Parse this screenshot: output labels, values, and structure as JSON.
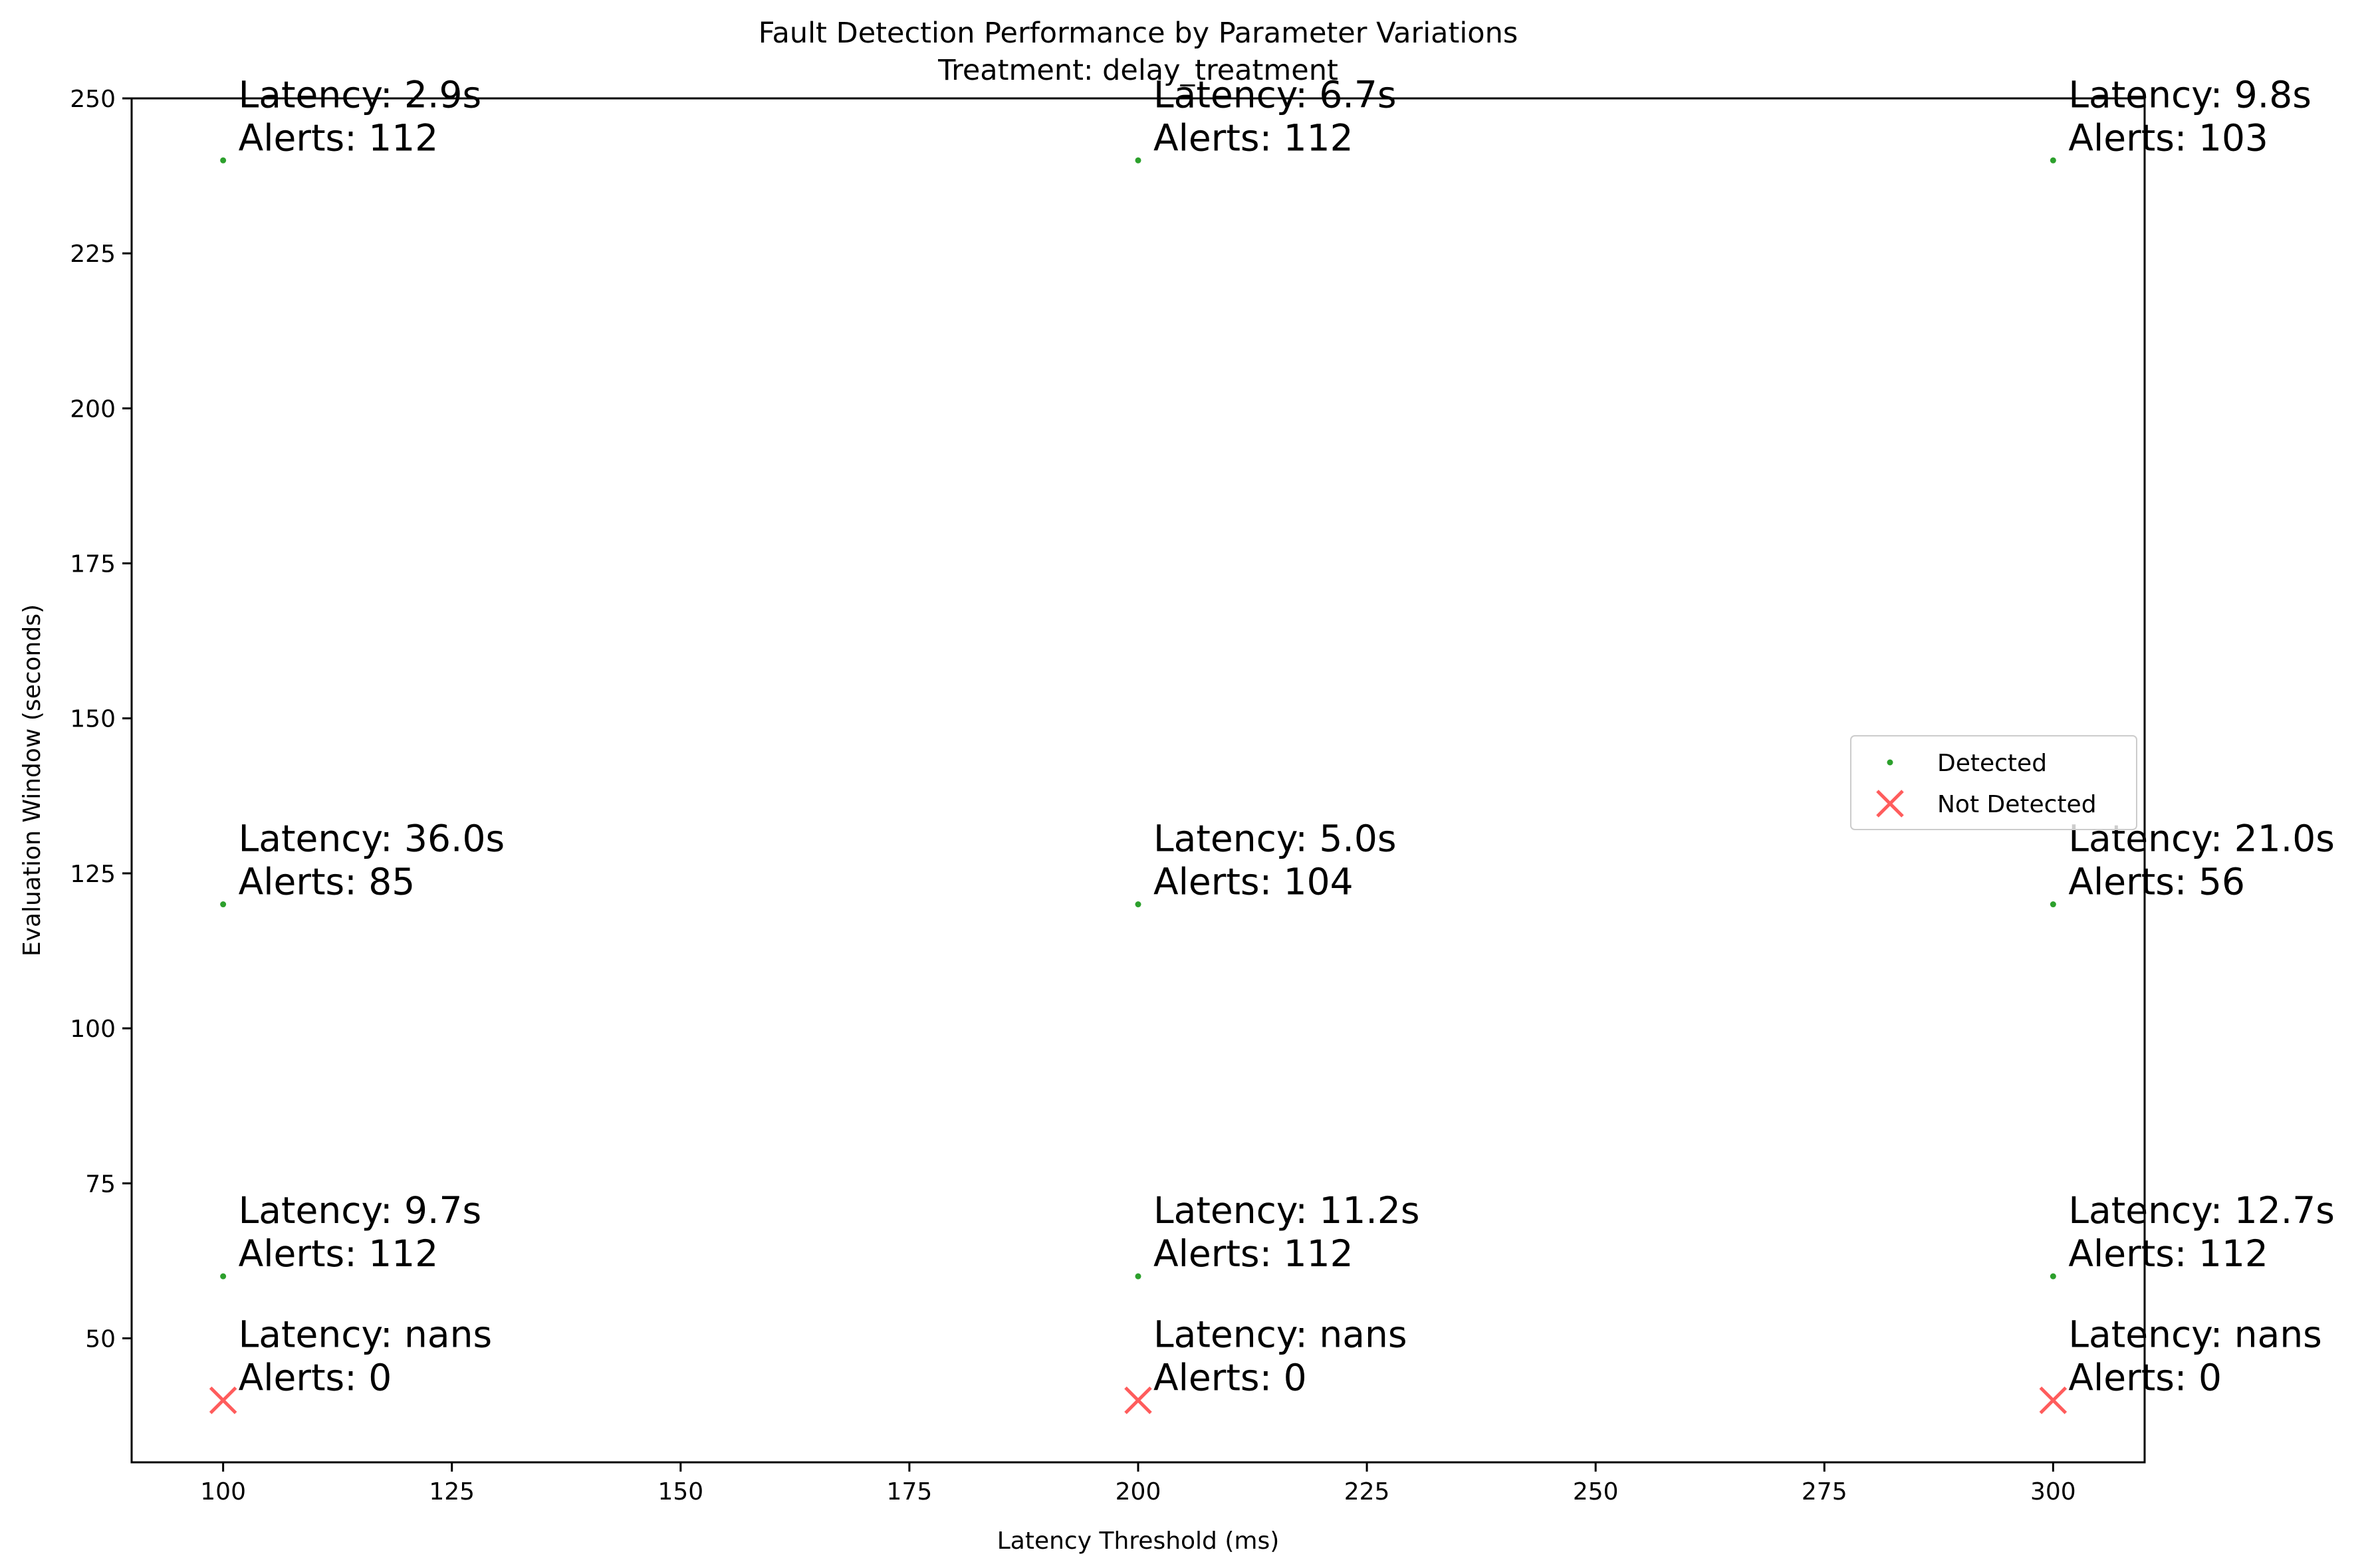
{
  "chart_data": {
    "type": "scatter",
    "title": "Fault Detection Performance by Parameter Variations",
    "subtitle": "Treatment: delay_treatment",
    "xlabel": "Latency Threshold (ms)",
    "ylabel": "Evaluation Window (seconds)",
    "xlim": [
      90,
      310
    ],
    "ylim": [
      30,
      250
    ],
    "xticks": [
      100,
      125,
      150,
      175,
      200,
      225,
      250,
      275,
      300
    ],
    "yticks": [
      50,
      75,
      100,
      125,
      150,
      175,
      200,
      225,
      250
    ],
    "grid": false,
    "legend_position": "center-right",
    "colors": {
      "detected": "#2ca02c",
      "not_detected": "#ff5c5c"
    },
    "series": [
      {
        "name": "Detected",
        "marker": "dot",
        "points": [
          {
            "x": 100,
            "y": 240,
            "latency_label": "Latency: 2.9s",
            "alerts_label": "Alerts: 112"
          },
          {
            "x": 200,
            "y": 240,
            "latency_label": "Latency: 6.7s",
            "alerts_label": "Alerts: 112"
          },
          {
            "x": 300,
            "y": 240,
            "latency_label": "Latency: 9.8s",
            "alerts_label": "Alerts: 103"
          },
          {
            "x": 100,
            "y": 120,
            "latency_label": "Latency: 36.0s",
            "alerts_label": "Alerts: 85"
          },
          {
            "x": 200,
            "y": 120,
            "latency_label": "Latency: 5.0s",
            "alerts_label": "Alerts: 104"
          },
          {
            "x": 300,
            "y": 120,
            "latency_label": "Latency: 21.0s",
            "alerts_label": "Alerts: 56"
          },
          {
            "x": 100,
            "y": 60,
            "latency_label": "Latency: 9.7s",
            "alerts_label": "Alerts: 112"
          },
          {
            "x": 200,
            "y": 60,
            "latency_label": "Latency: 11.2s",
            "alerts_label": "Alerts: 112"
          },
          {
            "x": 300,
            "y": 60,
            "latency_label": "Latency: 12.7s",
            "alerts_label": "Alerts: 112"
          }
        ]
      },
      {
        "name": "Not Detected",
        "marker": "x",
        "points": [
          {
            "x": 100,
            "y": 40,
            "latency_label": "Latency: nans",
            "alerts_label": "Alerts: 0"
          },
          {
            "x": 200,
            "y": 40,
            "latency_label": "Latency: nans",
            "alerts_label": "Alerts: 0"
          },
          {
            "x": 300,
            "y": 40,
            "latency_label": "Latency: nans",
            "alerts_label": "Alerts: 0"
          }
        ]
      }
    ]
  }
}
